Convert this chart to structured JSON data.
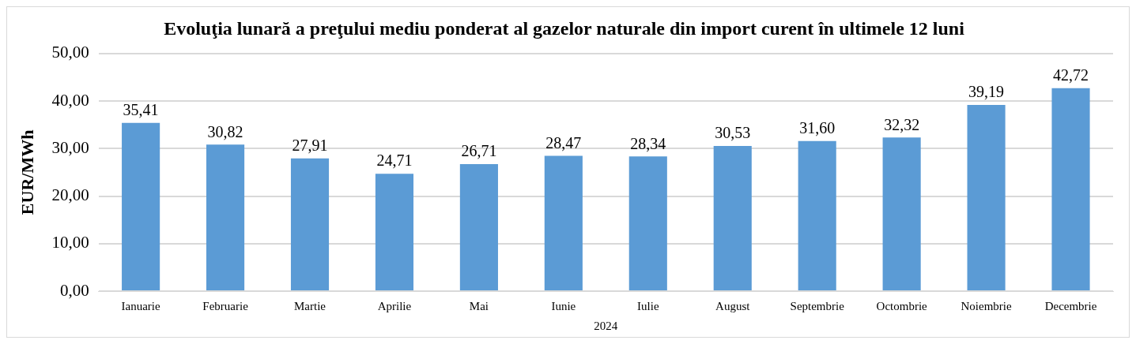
{
  "chart_data": {
    "type": "bar",
    "title": "Evoluţia lunară a preţului mediu ponderat al gazelor naturale din import curent în ultimele 12 luni",
    "xlabel": "2024",
    "ylabel": "EUR/MWh",
    "categories": [
      "Ianuarie",
      "Februarie",
      "Martie",
      "Aprilie",
      "Mai",
      "Iunie",
      "Iulie",
      "August",
      "Septembrie",
      "Octombrie",
      "Noiembrie",
      "Decembrie"
    ],
    "values": [
      35.41,
      30.82,
      27.91,
      24.71,
      26.71,
      28.47,
      28.34,
      30.53,
      31.6,
      32.32,
      39.19,
      42.72
    ],
    "value_labels": [
      "35,41",
      "30,82",
      "27,91",
      "24,71",
      "26,71",
      "28,47",
      "28,34",
      "30,53",
      "31,60",
      "32,32",
      "39,19",
      "42,72"
    ],
    "color": "#5b9bd5",
    "ylim": [
      0,
      50
    ],
    "yticks": [
      {
        "value": 0,
        "label": "0,00"
      },
      {
        "value": 10,
        "label": "10,00"
      },
      {
        "value": 20,
        "label": "20,00"
      },
      {
        "value": 30,
        "label": "30,00"
      },
      {
        "value": 40,
        "label": "40,00"
      },
      {
        "value": 50,
        "label": "50,00"
      }
    ],
    "grid": "y",
    "legend": false
  }
}
